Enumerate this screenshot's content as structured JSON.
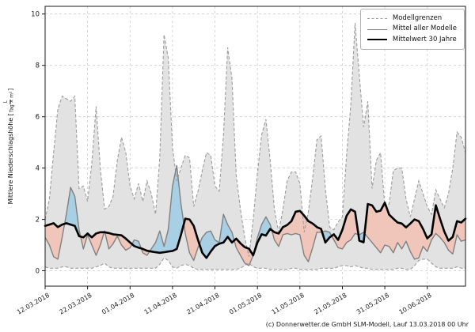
{
  "figure": {
    "caption": "(c) Donnerwetter.de GmbH SLM-Modell, Lauf 13.03.2018 00 Uhr"
  },
  "legend": {
    "items": [
      {
        "label": "Modellgrenzen",
        "style": "dashed",
        "color": "#9c9c9c"
      },
      {
        "label": "Mittel aller Modelle",
        "style": "solid",
        "color": "#808080"
      },
      {
        "label": "Mittelwert 30 Jahre",
        "style": "thick",
        "color": "#000000"
      }
    ]
  },
  "axes": {
    "ylabel_prefix": "Mittlere Niederschlagshöhe [",
    "ylabel_fraction_numerator": "L",
    "ylabel_fraction_denominator": "Tag × m²",
    "ylabel_suffix": "]"
  },
  "chart_data": {
    "type": "line",
    "title": "",
    "xlabel": "",
    "ylabel": "Mittlere Niederschlagshöhe [L/(Tag × m²)]",
    "grid": true,
    "legend_position": "top-right",
    "start_date": "12.03.2018",
    "x_unit": "days since 12.03.2018, daily values",
    "x_tick_days": [
      0,
      10,
      20,
      30,
      40,
      50,
      60,
      70,
      80,
      90
    ],
    "x_tick_labels": [
      "12.03.2018",
      "22.03.2018",
      "01.04.2018",
      "11.04.2018",
      "21.04.2018",
      "01.05.2018",
      "11.05.2018",
      "21.05.2018",
      "31.05.2018",
      "10.06.2018"
    ],
    "y_ticks": [
      0,
      2,
      4,
      6,
      8,
      10
    ],
    "ylim": [
      -0.6,
      10.3
    ],
    "xlim": [
      0,
      99
    ],
    "series": [
      {
        "name": "Modellgrenzen (Obergrenze)",
        "role": "band-upper",
        "values": [
          2.0,
          2.8,
          4.6,
          6.3,
          6.8,
          6.7,
          6.6,
          6.8,
          3.2,
          3.3,
          2.7,
          4.2,
          6.4,
          4.0,
          2.4,
          2.5,
          2.9,
          4.3,
          5.2,
          4.6,
          3.3,
          2.8,
          3.4,
          2.7,
          3.5,
          3.0,
          2.2,
          4.4,
          9.2,
          8.3,
          4.8,
          3.5,
          4.0,
          4.5,
          4.4,
          2.5,
          3.1,
          3.9,
          4.6,
          4.5,
          3.3,
          3.1,
          5.3,
          8.7,
          7.5,
          3.7,
          2.4,
          1.3,
          0.55,
          2.0,
          3.8,
          5.3,
          5.9,
          4.3,
          2.4,
          1.5,
          2.4,
          3.5,
          3.85,
          3.85,
          3.4,
          1.5,
          2.3,
          3.6,
          5.1,
          5.25,
          3.2,
          1.7,
          1.6,
          1.9,
          2.1,
          4.5,
          6.5,
          9.65,
          7.6,
          5.6,
          6.6,
          3.2,
          4.3,
          4.6,
          2.5,
          2.6,
          3.9,
          4.0,
          4.0,
          2.8,
          2.1,
          2.8,
          3.5,
          3.0,
          2.5,
          2.2,
          3.15,
          2.8,
          2.45,
          3.0,
          4.0,
          5.4,
          5.2,
          4.6
        ]
      },
      {
        "name": "Modellgrenzen (Untergrenze)",
        "role": "band-lower",
        "values": [
          0.15,
          0.1,
          0.1,
          0.1,
          0.15,
          0.15,
          0.1,
          0.1,
          0.1,
          0.1,
          0.1,
          0.1,
          0.15,
          0.2,
          0.3,
          0.15,
          0.1,
          0.1,
          0.1,
          0.1,
          0.1,
          0.1,
          0.1,
          0.1,
          0.1,
          0.1,
          0.1,
          0.25,
          0.5,
          0.4,
          0.15,
          0.1,
          0.2,
          0.25,
          0.2,
          0.1,
          0.05,
          0.05,
          0.05,
          0.05,
          0.05,
          0.05,
          0.05,
          0.05,
          0.05,
          0.05,
          0.1,
          0.2,
          0.3,
          0.15,
          0.1,
          0.1,
          0.1,
          0.05,
          0.05,
          0.05,
          0.05,
          0.05,
          0.1,
          0.1,
          0.05,
          0.05,
          0.05,
          0.05,
          0.05,
          0.1,
          0.1,
          0.1,
          0.1,
          0.15,
          0.2,
          0.2,
          0.15,
          0.2,
          0.15,
          0.1,
          0.1,
          0.05,
          0.05,
          0.05,
          0.05,
          0.05,
          0.05,
          0.1,
          0.1,
          0.05,
          0.05,
          0.2,
          0.4,
          0.45,
          0.45,
          0.3,
          0.15,
          0.1,
          0.1,
          0.1,
          0.1,
          0.15,
          0.1,
          0.1
        ]
      },
      {
        "name": "Mittel aller Modelle",
        "role": "model-mean",
        "values": [
          1.3,
          1.0,
          0.55,
          0.45,
          1.3,
          2.2,
          3.25,
          2.9,
          1.6,
          0.85,
          1.4,
          1.0,
          0.6,
          1.0,
          1.55,
          0.85,
          1.05,
          1.35,
          1.0,
          0.8,
          0.9,
          1.2,
          1.15,
          0.7,
          0.6,
          0.85,
          1.1,
          1.55,
          0.95,
          1.6,
          3.3,
          4.1,
          2.6,
          1.45,
          0.7,
          0.4,
          0.9,
          1.3,
          1.5,
          1.55,
          1.2,
          1.1,
          2.2,
          1.8,
          1.5,
          0.9,
          0.6,
          0.3,
          0.2,
          0.6,
          1.3,
          1.8,
          2.1,
          1.8,
          1.2,
          0.95,
          1.4,
          1.45,
          1.4,
          1.45,
          1.4,
          0.6,
          0.35,
          0.9,
          1.5,
          1.5,
          1.55,
          1.5,
          1.2,
          0.9,
          0.85,
          1.1,
          1.2,
          1.45,
          1.4,
          1.5,
          1.3,
          1.1,
          0.9,
          0.7,
          1.0,
          0.95,
          0.7,
          1.1,
          0.85,
          1.15,
          0.75,
          0.45,
          0.5,
          0.95,
          0.75,
          1.2,
          1.45,
          1.3,
          1.1,
          0.8,
          0.65,
          1.4,
          1.15,
          1.2
        ]
      },
      {
        "name": "Mittelwert 30 Jahre",
        "role": "climate-mean",
        "values": [
          1.75,
          1.8,
          1.85,
          1.7,
          1.8,
          1.85,
          1.8,
          1.75,
          1.35,
          1.3,
          1.45,
          1.3,
          1.45,
          1.5,
          1.5,
          1.47,
          1.42,
          1.4,
          1.38,
          1.25,
          1.1,
          0.96,
          0.9,
          0.85,
          0.78,
          0.75,
          0.72,
          0.7,
          0.72,
          0.75,
          0.77,
          0.85,
          1.4,
          2.03,
          2.0,
          1.75,
          1.2,
          0.7,
          0.5,
          0.75,
          0.96,
          1.05,
          1.1,
          1.32,
          1.1,
          1.25,
          1.07,
          0.92,
          0.86,
          0.6,
          1.1,
          1.42,
          1.37,
          1.63,
          1.5,
          1.45,
          1.7,
          1.78,
          1.93,
          2.3,
          2.33,
          2.15,
          1.93,
          1.84,
          1.7,
          1.63,
          1.1,
          1.3,
          1.42,
          1.2,
          1.6,
          2.14,
          2.39,
          2.3,
          1.17,
          1.11,
          2.6,
          2.55,
          2.3,
          2.34,
          2.65,
          2.19,
          2.03,
          1.88,
          1.84,
          1.69,
          1.84,
          2.0,
          1.93,
          1.63,
          1.26,
          1.42,
          2.55,
          2.03,
          1.53,
          1.17,
          1.32,
          1.93,
          1.88,
          2.03
        ]
      }
    ],
    "colors": {
      "band_fill": "#e2e2e2",
      "band_border": "#9c9c9c",
      "model_mean": "#808080",
      "climate_mean": "#000000",
      "above_normal_fill": "#a9cfe5",
      "below_normal_fill": "#efc6b9",
      "grid": "#cdcdcd",
      "spine": "#1a1a1a"
    }
  }
}
